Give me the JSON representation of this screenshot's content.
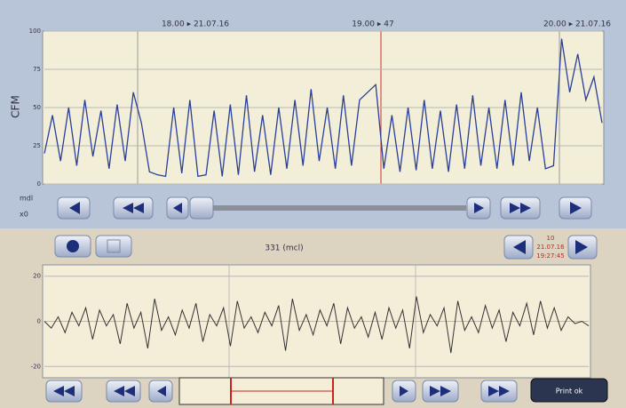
{
  "header": {
    "time_left": "18.00 ▸ 21.07.16",
    "time_mid": "19.00 ▸ 47",
    "time_right": "20.00 ▸ 21.07.16"
  },
  "upper": {
    "axis_label": "CFM",
    "ylim": [
      0,
      100
    ],
    "yticks": [
      0,
      25,
      50,
      75,
      100
    ],
    "values": [
      20,
      45,
      15,
      50,
      12,
      55,
      18,
      48,
      10,
      52,
      15,
      60,
      40,
      8,
      6,
      5,
      50,
      7,
      55,
      5,
      6,
      48,
      5,
      52,
      6,
      58,
      8,
      45,
      6,
      50,
      10,
      55,
      12,
      62,
      15,
      50,
      10,
      58,
      12,
      55,
      60,
      65,
      10,
      45,
      8,
      50,
      9,
      55,
      10,
      48,
      8,
      52,
      10,
      58,
      12,
      50,
      10,
      55,
      12,
      60,
      15,
      50,
      10,
      12,
      95,
      60,
      85,
      55,
      70,
      40
    ]
  },
  "side_labels": [
    "mdl",
    "x0"
  ],
  "lower": {
    "title": "331 (mcl)",
    "date": [
      "10",
      "21.07.16",
      "19:27:45"
    ],
    "ylim": [
      -25,
      25
    ],
    "yticks": [
      -20,
      0,
      20
    ],
    "values": [
      0,
      -3,
      2,
      -5,
      4,
      -2,
      6,
      -8,
      5,
      -2,
      3,
      -10,
      8,
      -3,
      4,
      -12,
      10,
      -4,
      2,
      -6,
      5,
      -3,
      8,
      -9,
      3,
      -2,
      6,
      -11,
      9,
      -3,
      2,
      -5,
      4,
      -2,
      7,
      -13,
      10,
      -4,
      3,
      -6,
      5,
      -2,
      8,
      -10,
      6,
      -3,
      2,
      -7,
      4,
      -8,
      6,
      -3,
      5,
      -12,
      11,
      -5,
      3,
      -2,
      6,
      -14,
      9,
      -4,
      2,
      -5,
      7,
      -3,
      5,
      -9,
      4,
      -2,
      8,
      -6,
      9,
      -3,
      6,
      -4,
      2,
      -1,
      0,
      -2
    ],
    "button": "Print ok"
  }
}
